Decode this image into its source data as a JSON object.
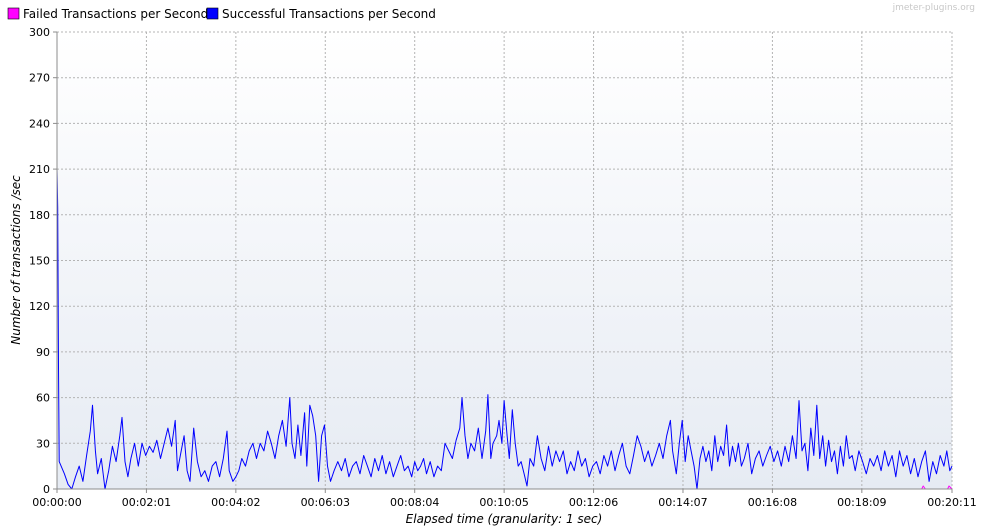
{
  "watermark": "jmeter-plugins.org",
  "chart_data": {
    "type": "line",
    "xlabel": "Elapsed time (granularity: 1 sec)",
    "ylabel": "Number of transactions /sec",
    "ylim": [
      0,
      300
    ],
    "xlim_seconds": [
      0,
      1211
    ],
    "y_ticks": [
      0,
      30,
      60,
      90,
      120,
      150,
      180,
      210,
      240,
      270,
      300
    ],
    "x_ticks": [
      {
        "label": "00:00:00",
        "seconds": 0
      },
      {
        "label": "00:02:01",
        "seconds": 121
      },
      {
        "label": "00:04:02",
        "seconds": 242
      },
      {
        "label": "00:06:03",
        "seconds": 363
      },
      {
        "label": "00:08:04",
        "seconds": 484
      },
      {
        "label": "00:10:05",
        "seconds": 605
      },
      {
        "label": "00:12:06",
        "seconds": 726
      },
      {
        "label": "00:14:07",
        "seconds": 847
      },
      {
        "label": "00:16:08",
        "seconds": 968
      },
      {
        "label": "00:18:09",
        "seconds": 1089
      },
      {
        "label": "00:20:11",
        "seconds": 1211
      }
    ],
    "grid": true,
    "legend_position": "top-left",
    "series": [
      {
        "name": "Failed Transactions per Second",
        "color": "#ff00ff",
        "points": [
          [
            0,
            0
          ],
          [
            100,
            0
          ],
          [
            200,
            0
          ],
          [
            300,
            0
          ],
          [
            400,
            0
          ],
          [
            500,
            0
          ],
          [
            600,
            0
          ],
          [
            700,
            0
          ],
          [
            800,
            0
          ],
          [
            900,
            0
          ],
          [
            1000,
            0
          ],
          [
            1100,
            0
          ],
          [
            1170,
            0
          ],
          [
            1172,
            2
          ],
          [
            1175,
            0
          ],
          [
            1205,
            0
          ],
          [
            1207,
            2
          ],
          [
            1211,
            0
          ]
        ]
      },
      {
        "name": "Successful Transactions per Second",
        "color": "#0000ff",
        "points": [
          [
            0,
            210
          ],
          [
            1,
            185
          ],
          [
            2,
            80
          ],
          [
            3,
            18
          ],
          [
            10,
            10
          ],
          [
            15,
            3
          ],
          [
            20,
            0
          ],
          [
            25,
            8
          ],
          [
            30,
            15
          ],
          [
            35,
            5
          ],
          [
            40,
            22
          ],
          [
            45,
            38
          ],
          [
            48,
            55
          ],
          [
            52,
            25
          ],
          [
            55,
            10
          ],
          [
            60,
            20
          ],
          [
            65,
            0
          ],
          [
            70,
            12
          ],
          [
            75,
            28
          ],
          [
            80,
            18
          ],
          [
            85,
            35
          ],
          [
            88,
            47
          ],
          [
            92,
            18
          ],
          [
            96,
            8
          ],
          [
            100,
            20
          ],
          [
            105,
            30
          ],
          [
            110,
            15
          ],
          [
            115,
            30
          ],
          [
            120,
            22
          ],
          [
            125,
            28
          ],
          [
            130,
            24
          ],
          [
            135,
            32
          ],
          [
            140,
            20
          ],
          [
            145,
            30
          ],
          [
            150,
            40
          ],
          [
            155,
            28
          ],
          [
            160,
            45
          ],
          [
            163,
            12
          ],
          [
            168,
            25
          ],
          [
            172,
            35
          ],
          [
            176,
            12
          ],
          [
            180,
            5
          ],
          [
            185,
            40
          ],
          [
            190,
            18
          ],
          [
            195,
            8
          ],
          [
            200,
            12
          ],
          [
            205,
            5
          ],
          [
            210,
            15
          ],
          [
            215,
            18
          ],
          [
            220,
            8
          ],
          [
            225,
            20
          ],
          [
            230,
            38
          ],
          [
            233,
            12
          ],
          [
            238,
            5
          ],
          [
            242,
            8
          ],
          [
            246,
            12
          ],
          [
            250,
            20
          ],
          [
            255,
            15
          ],
          [
            260,
            25
          ],
          [
            265,
            30
          ],
          [
            270,
            20
          ],
          [
            275,
            30
          ],
          [
            280,
            25
          ],
          [
            285,
            38
          ],
          [
            290,
            30
          ],
          [
            295,
            20
          ],
          [
            300,
            35
          ],
          [
            305,
            45
          ],
          [
            310,
            28
          ],
          [
            315,
            60
          ],
          [
            318,
            30
          ],
          [
            322,
            20
          ],
          [
            326,
            42
          ],
          [
            330,
            22
          ],
          [
            335,
            50
          ],
          [
            338,
            15
          ],
          [
            342,
            55
          ],
          [
            346,
            48
          ],
          [
            350,
            35
          ],
          [
            354,
            5
          ],
          [
            358,
            35
          ],
          [
            362,
            42
          ],
          [
            366,
            15
          ],
          [
            370,
            5
          ],
          [
            375,
            12
          ],
          [
            380,
            18
          ],
          [
            385,
            12
          ],
          [
            390,
            20
          ],
          [
            395,
            8
          ],
          [
            400,
            15
          ],
          [
            405,
            18
          ],
          [
            410,
            10
          ],
          [
            415,
            22
          ],
          [
            420,
            15
          ],
          [
            425,
            8
          ],
          [
            430,
            20
          ],
          [
            435,
            12
          ],
          [
            440,
            22
          ],
          [
            445,
            10
          ],
          [
            450,
            18
          ],
          [
            455,
            8
          ],
          [
            460,
            15
          ],
          [
            465,
            22
          ],
          [
            470,
            12
          ],
          [
            475,
            15
          ],
          [
            480,
            8
          ],
          [
            484,
            18
          ],
          [
            488,
            12
          ],
          [
            492,
            15
          ],
          [
            496,
            20
          ],
          [
            500,
            10
          ],
          [
            505,
            18
          ],
          [
            510,
            8
          ],
          [
            515,
            15
          ],
          [
            520,
            12
          ],
          [
            525,
            30
          ],
          [
            530,
            25
          ],
          [
            535,
            20
          ],
          [
            540,
            32
          ],
          [
            545,
            40
          ],
          [
            548,
            60
          ],
          [
            552,
            35
          ],
          [
            556,
            20
          ],
          [
            560,
            30
          ],
          [
            565,
            25
          ],
          [
            570,
            40
          ],
          [
            575,
            20
          ],
          [
            580,
            38
          ],
          [
            583,
            62
          ],
          [
            587,
            20
          ],
          [
            590,
            30
          ],
          [
            595,
            35
          ],
          [
            598,
            45
          ],
          [
            602,
            30
          ],
          [
            605,
            58
          ],
          [
            609,
            35
          ],
          [
            612,
            20
          ],
          [
            616,
            52
          ],
          [
            620,
            30
          ],
          [
            624,
            15
          ],
          [
            628,
            18
          ],
          [
            632,
            10
          ],
          [
            636,
            2
          ],
          [
            640,
            20
          ],
          [
            645,
            15
          ],
          [
            650,
            35
          ],
          [
            655,
            20
          ],
          [
            660,
            12
          ],
          [
            665,
            28
          ],
          [
            670,
            15
          ],
          [
            675,
            25
          ],
          [
            680,
            18
          ],
          [
            685,
            25
          ],
          [
            690,
            10
          ],
          [
            695,
            18
          ],
          [
            700,
            12
          ],
          [
            705,
            25
          ],
          [
            710,
            15
          ],
          [
            715,
            20
          ],
          [
            720,
            8
          ],
          [
            725,
            15
          ],
          [
            730,
            18
          ],
          [
            735,
            10
          ],
          [
            740,
            22
          ],
          [
            745,
            15
          ],
          [
            750,
            25
          ],
          [
            755,
            12
          ],
          [
            760,
            22
          ],
          [
            765,
            30
          ],
          [
            770,
            15
          ],
          [
            775,
            10
          ],
          [
            780,
            22
          ],
          [
            785,
            35
          ],
          [
            790,
            28
          ],
          [
            795,
            18
          ],
          [
            800,
            25
          ],
          [
            805,
            15
          ],
          [
            810,
            22
          ],
          [
            815,
            30
          ],
          [
            820,
            20
          ],
          [
            825,
            35
          ],
          [
            830,
            45
          ],
          [
            833,
            25
          ],
          [
            838,
            10
          ],
          [
            842,
            30
          ],
          [
            846,
            45
          ],
          [
            850,
            18
          ],
          [
            854,
            35
          ],
          [
            858,
            25
          ],
          [
            862,
            15
          ],
          [
            866,
            0
          ],
          [
            870,
            20
          ],
          [
            874,
            28
          ],
          [
            878,
            18
          ],
          [
            882,
            25
          ],
          [
            886,
            12
          ],
          [
            890,
            35
          ],
          [
            894,
            18
          ],
          [
            898,
            28
          ],
          [
            902,
            22
          ],
          [
            906,
            42
          ],
          [
            910,
            15
          ],
          [
            914,
            28
          ],
          [
            918,
            18
          ],
          [
            922,
            30
          ],
          [
            926,
            15
          ],
          [
            930,
            20
          ],
          [
            935,
            30
          ],
          [
            940,
            10
          ],
          [
            945,
            20
          ],
          [
            950,
            25
          ],
          [
            955,
            15
          ],
          [
            960,
            22
          ],
          [
            965,
            28
          ],
          [
            970,
            18
          ],
          [
            975,
            25
          ],
          [
            980,
            15
          ],
          [
            985,
            28
          ],
          [
            990,
            18
          ],
          [
            995,
            35
          ],
          [
            1000,
            20
          ],
          [
            1004,
            58
          ],
          [
            1008,
            25
          ],
          [
            1012,
            30
          ],
          [
            1016,
            12
          ],
          [
            1020,
            40
          ],
          [
            1024,
            22
          ],
          [
            1028,
            55
          ],
          [
            1032,
            20
          ],
          [
            1036,
            35
          ],
          [
            1040,
            15
          ],
          [
            1044,
            32
          ],
          [
            1048,
            18
          ],
          [
            1052,
            25
          ],
          [
            1056,
            10
          ],
          [
            1060,
            28
          ],
          [
            1064,
            15
          ],
          [
            1068,
            35
          ],
          [
            1072,
            20
          ],
          [
            1076,
            22
          ],
          [
            1080,
            12
          ],
          [
            1085,
            25
          ],
          [
            1090,
            18
          ],
          [
            1095,
            10
          ],
          [
            1100,
            20
          ],
          [
            1105,
            15
          ],
          [
            1110,
            22
          ],
          [
            1115,
            12
          ],
          [
            1120,
            25
          ],
          [
            1125,
            15
          ],
          [
            1130,
            22
          ],
          [
            1135,
            8
          ],
          [
            1140,
            25
          ],
          [
            1145,
            15
          ],
          [
            1150,
            22
          ],
          [
            1155,
            10
          ],
          [
            1160,
            20
          ],
          [
            1165,
            8
          ],
          [
            1170,
            18
          ],
          [
            1175,
            25
          ],
          [
            1180,
            5
          ],
          [
            1185,
            18
          ],
          [
            1190,
            10
          ],
          [
            1195,
            22
          ],
          [
            1200,
            15
          ],
          [
            1204,
            25
          ],
          [
            1208,
            12
          ],
          [
            1211,
            15
          ]
        ]
      }
    ]
  }
}
